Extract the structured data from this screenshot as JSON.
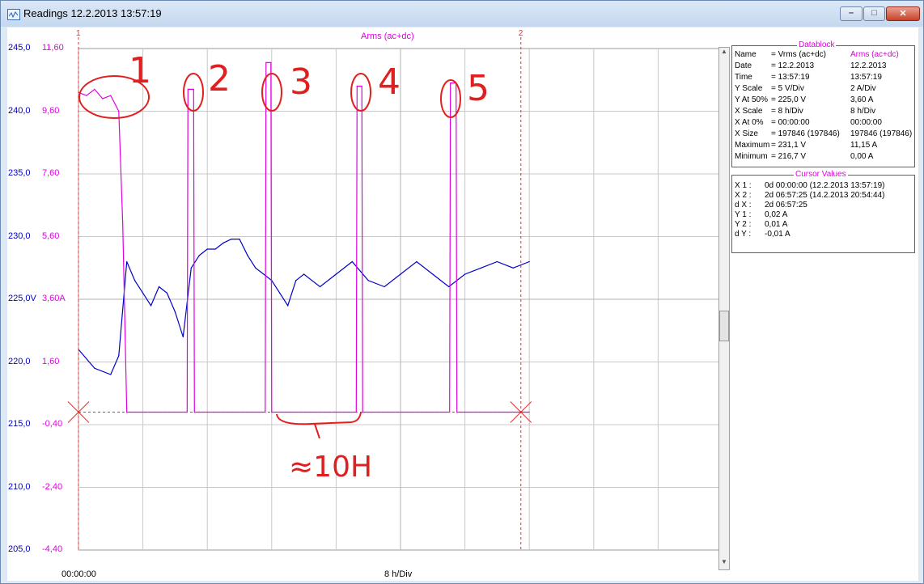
{
  "window": {
    "title": "Readings 12.2.2013  13:57:19",
    "buttons": {
      "minimize": "–",
      "maximize": "□",
      "close": "✕"
    }
  },
  "plot": {
    "top_title": "Arms (ac+dc)",
    "cursor1_label": "1",
    "cursor2_label": "2",
    "left_axis_labels": [
      "245,0",
      "240,0",
      "235,0",
      "230,0",
      "225,0V",
      "220,0",
      "215,0",
      "210,0",
      "205,0"
    ],
    "right_axis_labels": [
      "11,60",
      "9,60",
      "7,60",
      "5,60",
      "3,60A",
      "1,60",
      "-0,40",
      "-2,40",
      "-4,40"
    ],
    "x_start": "00:00:00",
    "x_scale": "8 h/Div",
    "annotations": [
      "1",
      "2",
      "3",
      "4",
      "5",
      "≈10H"
    ]
  },
  "chart_data": {
    "type": "line",
    "title": "Arms (ac+dc)",
    "series": [
      {
        "name": "Vrms (ac+dc)",
        "color": "#0000c8",
        "unit": "V",
        "x": [
          0,
          2,
          4,
          5,
          6,
          7,
          8,
          9,
          10,
          11,
          12,
          13,
          14,
          15,
          16,
          17,
          18,
          19,
          20,
          21,
          22,
          23,
          24,
          25,
          26,
          27,
          28,
          29,
          30,
          32,
          34,
          36,
          38,
          40,
          42,
          44,
          46,
          48,
          50,
          52,
          54,
          56
        ],
        "y": [
          221.0,
          219.5,
          219.0,
          220.5,
          228.0,
          226.5,
          225.5,
          224.5,
          226.0,
          225.5,
          224.0,
          222.0,
          227.5,
          228.5,
          229.0,
          229.0,
          229.5,
          229.8,
          229.8,
          228.5,
          227.5,
          227.0,
          226.5,
          225.5,
          224.5,
          226.5,
          227.0,
          226.5,
          226.0,
          227.0,
          228.0,
          226.5,
          226.0,
          227.0,
          228.0,
          227.0,
          226.0,
          227.0,
          227.5,
          228.0,
          227.5,
          228.0
        ]
      },
      {
        "name": "Arms (ac+dc)",
        "color": "#e000e0",
        "unit": "A",
        "x": [
          0,
          1,
          2,
          3,
          4,
          5,
          5.5,
          6,
          13.5,
          13.6,
          14.3,
          14.4,
          23.2,
          23.3,
          23.9,
          24.0,
          34.5,
          34.6,
          35.2,
          35.3,
          46.1,
          46.2,
          46.9,
          47.0,
          56
        ],
        "y": [
          10.2,
          10.1,
          10.3,
          10.0,
          10.1,
          9.6,
          6.0,
          0.0,
          0.0,
          10.3,
          10.3,
          0.0,
          0.0,
          11.15,
          11.15,
          0.0,
          0.0,
          10.4,
          10.4,
          0.0,
          0.0,
          10.5,
          10.5,
          0.0,
          0.0
        ]
      }
    ],
    "xlabel": "8 h/Div",
    "left_ylim": [
      205,
      245
    ],
    "right_ylim": [
      -4.4,
      11.6
    ],
    "cursor_x": [
      0,
      54.95
    ]
  },
  "datablock": {
    "header": "Datablock",
    "rows": [
      {
        "label": "Name",
        "v": "= Vrms (ac+dc)",
        "a": "Arms (ac+dc)"
      },
      {
        "label": "Date",
        "v": "= 12.2.2013",
        "a": "12.2.2013"
      },
      {
        "label": "Time",
        "v": "= 13:57:19",
        "a": "13:57:19"
      },
      {
        "label": "Y Scale",
        "v": "=    5   V/Div",
        "a": "2    A/Div"
      },
      {
        "label": "Y At 50%",
        "v": "= 225,0 V",
        "a": "3,60 A"
      },
      {
        "label": "X Scale",
        "v": "=    8   h/Div",
        "a": "8    h/Div"
      },
      {
        "label": "X At 0%",
        "v": "= 00:00:00",
        "a": "00:00:00"
      },
      {
        "label": "X Size",
        "v": "= 197846 (197846)",
        "a": "197846 (197846)"
      },
      {
        "label": "Maximum",
        "v": "= 231,1 V",
        "a": "11,15 A"
      },
      {
        "label": "Minimum",
        "v": "= 216,7 V",
        "a": "0,00 A"
      }
    ]
  },
  "cursor_values": {
    "header": "Cursor Values",
    "rows": [
      {
        "label": "X 1 :",
        "value": "0d 00:00:00 (12.2.2013 13:57:19)"
      },
      {
        "label": "X 2 :",
        "value": "2d 06:57:25 (14.2.2013 20:54:44)"
      },
      {
        "label": "d X :",
        "value": "2d 06:57:25"
      },
      {
        "label": "Y 1 :",
        "value": "0,02 A"
      },
      {
        "label": "Y 2 :",
        "value": "0,01 A"
      },
      {
        "label": "d Y :",
        "value": "-0,01 A"
      }
    ]
  }
}
